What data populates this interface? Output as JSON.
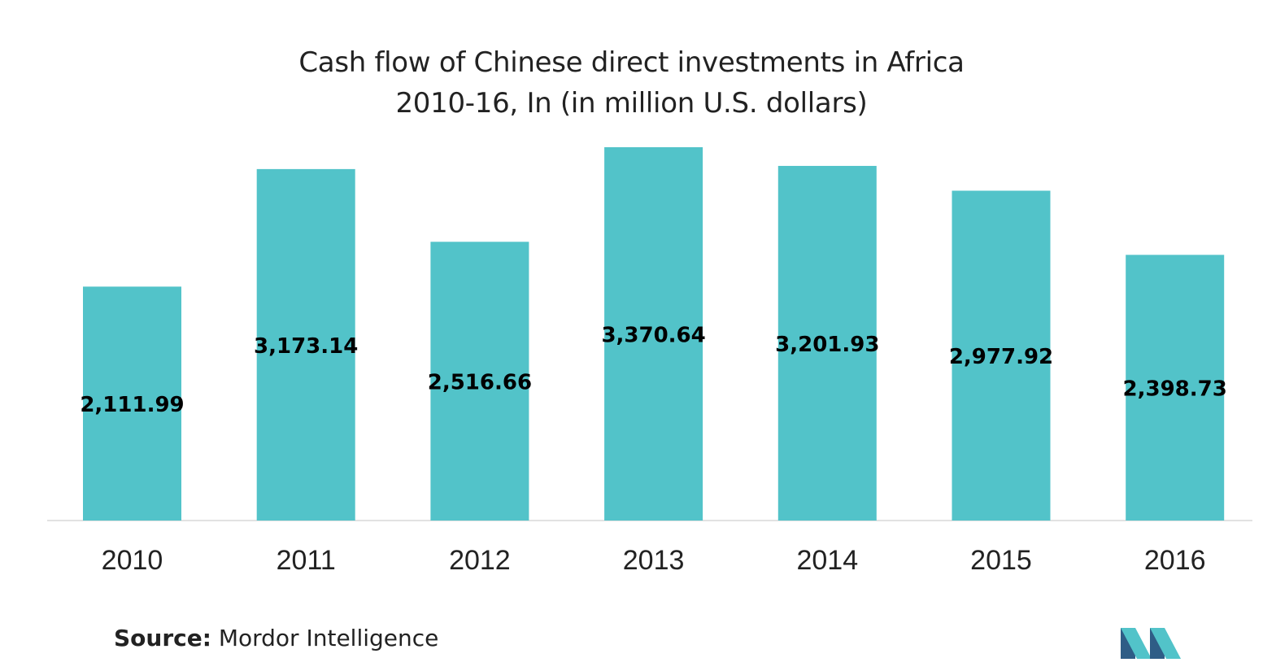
{
  "chart_data": {
    "type": "bar",
    "title": "Cash flow of Chinese direct investments in Africa",
    "subtitle": "2010-16, In  (in million U.S. dollars)",
    "categories": [
      "2010",
      "2011",
      "2012",
      "2013",
      "2014",
      "2015",
      "2016"
    ],
    "values": [
      2111.99,
      3173.14,
      2516.66,
      3370.64,
      3201.93,
      2977.92,
      2398.73
    ],
    "value_labels": [
      "2,111.99",
      "3,173.14",
      "2,516.66",
      "3,370.64",
      "3,201.93",
      "2,977.92",
      "2,398.73"
    ],
    "ylim": [
      0,
      3370.64
    ],
    "grid": false,
    "bar_color": "#52c3c9",
    "label_color": "#000000"
  },
  "source": {
    "label": "Source:",
    "text": "Mordor Intelligence"
  },
  "logo": {
    "icon": "mordor-intelligence-logo-icon",
    "colors": [
      "#2f5d86",
      "#52c3c9"
    ]
  }
}
